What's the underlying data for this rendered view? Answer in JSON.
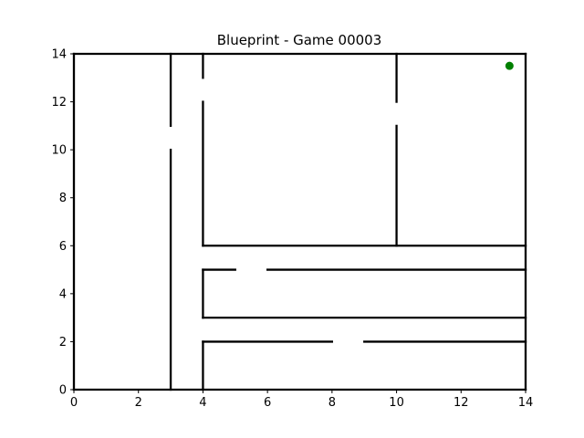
{
  "title": "Blueprint - Game 00003",
  "chart_data": {
    "type": "maze",
    "title": "Blueprint - Game 00003",
    "xlabel": "",
    "ylabel": "",
    "xlim": [
      0,
      14
    ],
    "ylim": [
      0,
      14
    ],
    "xticks": [
      0,
      2,
      4,
      6,
      8,
      10,
      12,
      14
    ],
    "yticks": [
      0,
      2,
      4,
      6,
      8,
      10,
      12,
      14
    ],
    "grid": false,
    "walls": [
      {
        "x": [
          0,
          14
        ],
        "y": [
          14,
          14
        ]
      },
      {
        "x": [
          0,
          14
        ],
        "y": [
          0,
          0
        ]
      },
      {
        "x": [
          0,
          0
        ],
        "y": [
          0,
          14
        ]
      },
      {
        "x": [
          14,
          14
        ],
        "y": [
          0,
          14
        ]
      },
      {
        "x": [
          3,
          3
        ],
        "y": [
          11,
          14
        ]
      },
      {
        "x": [
          3,
          3
        ],
        "y": [
          0,
          10
        ]
      },
      {
        "x": [
          4,
          4
        ],
        "y": [
          13,
          14
        ]
      },
      {
        "x": [
          4,
          4
        ],
        "y": [
          6,
          12
        ]
      },
      {
        "x": [
          4,
          4
        ],
        "y": [
          3,
          5
        ]
      },
      {
        "x": [
          4,
          4
        ],
        "y": [
          0,
          2
        ]
      },
      {
        "x": [
          10,
          10
        ],
        "y": [
          12,
          14
        ]
      },
      {
        "x": [
          10,
          10
        ],
        "y": [
          6,
          11
        ]
      },
      {
        "x": [
          4,
          14
        ],
        "y": [
          6,
          6
        ]
      },
      {
        "x": [
          4,
          5
        ],
        "y": [
          5,
          5
        ]
      },
      {
        "x": [
          6,
          14
        ],
        "y": [
          5,
          5
        ]
      },
      {
        "x": [
          4,
          14
        ],
        "y": [
          3,
          3
        ]
      },
      {
        "x": [
          4,
          8
        ],
        "y": [
          2,
          2
        ]
      },
      {
        "x": [
          9,
          14
        ],
        "y": [
          2,
          2
        ]
      }
    ],
    "goal": {
      "x": 13.5,
      "y": 13.5
    },
    "colors": {
      "wall": "#000000",
      "goal": "#008000",
      "axes": "#000000",
      "background": "#ffffff"
    }
  }
}
